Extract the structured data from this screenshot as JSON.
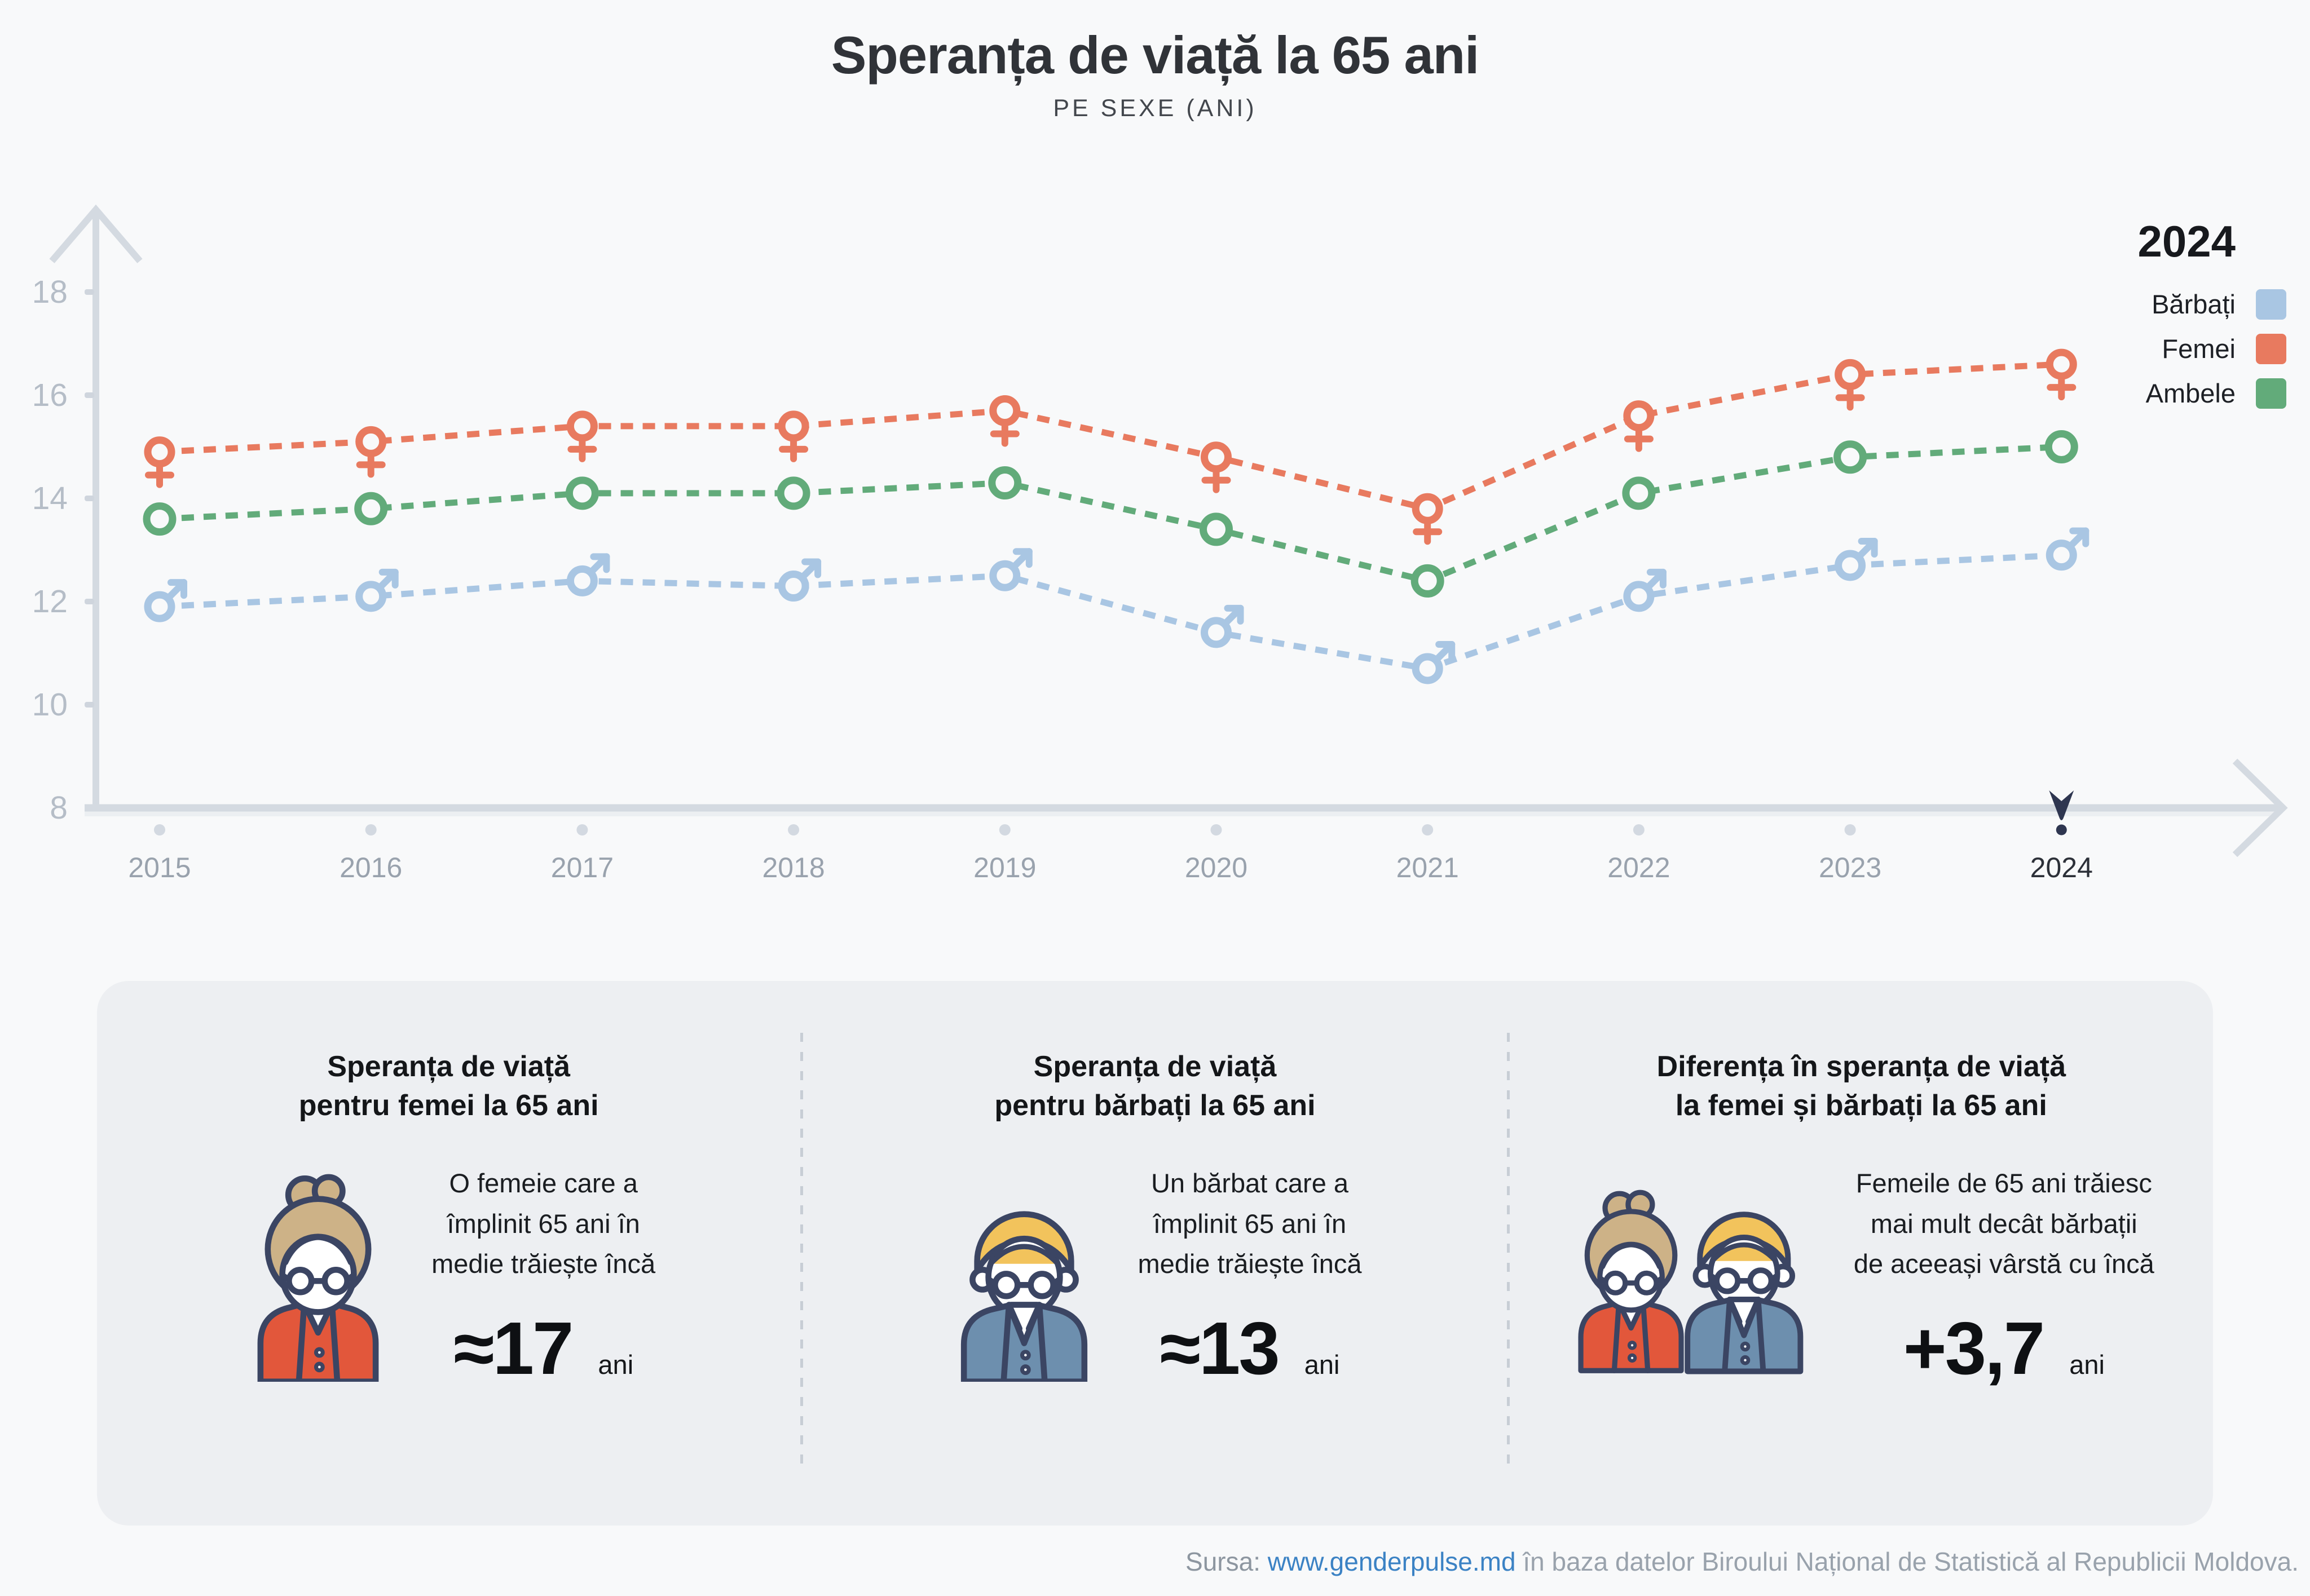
{
  "header": {
    "title": "Speranța de viață la 65 ani",
    "subtitle": "PE SEXE (ANI)"
  },
  "legend": {
    "year": "2024",
    "items": [
      {
        "label": "Bărbați",
        "color": "#a9c6e3"
      },
      {
        "label": "Femei",
        "color": "#e87a5f"
      },
      {
        "label": "Ambele",
        "color": "#62ab7a"
      }
    ]
  },
  "chart_data": {
    "type": "line",
    "title": "Speranța de viață la 65 ani",
    "subtitle": "PE SEXE (ANI)",
    "x": [
      2015,
      2016,
      2017,
      2018,
      2019,
      2020,
      2021,
      2022,
      2023,
      2024
    ],
    "series": [
      {
        "name": "Femei",
        "color": "#e87a5f",
        "marker": "female",
        "values": [
          14.9,
          15.1,
          15.4,
          15.4,
          15.7,
          14.8,
          13.8,
          15.6,
          16.4,
          16.6
        ]
      },
      {
        "name": "Ambele",
        "color": "#62ab7a",
        "marker": "circle",
        "values": [
          13.6,
          13.8,
          14.1,
          14.1,
          14.3,
          13.4,
          12.4,
          14.1,
          14.8,
          15.0
        ]
      },
      {
        "name": "Bărbați",
        "color": "#a9c6e3",
        "marker": "male",
        "values": [
          11.9,
          12.1,
          12.4,
          12.3,
          12.5,
          11.4,
          10.7,
          12.1,
          12.7,
          12.9
        ]
      }
    ],
    "y_ticks": [
      8,
      10,
      12,
      14,
      16,
      18
    ],
    "ylim": [
      8,
      18.6
    ],
    "xlabel": "",
    "ylabel": "",
    "grid": false,
    "line_style": "dashed",
    "legend_position": "top-right",
    "highlight_year": 2024
  },
  "cards": [
    {
      "title_line1": "Speranța de viață",
      "title_line2": "pentru femei la 65 ani",
      "icon": "elderly-woman-icon",
      "body_lines": [
        "O femeie care a",
        "împlinit 65 ani în",
        "medie trăiește încă"
      ],
      "value": "≈17",
      "unit": "ani"
    },
    {
      "title_line1": "Speranța de viață",
      "title_line2": "pentru bărbați la 65 ani",
      "icon": "elderly-man-icon",
      "body_lines": [
        "Un bărbat care a",
        "împlinit 65 ani în",
        "medie trăiește încă"
      ],
      "value": "≈13",
      "unit": "ani"
    },
    {
      "title_line1": "Diferența în speranța de viață",
      "title_line2": "la femei și bărbați la 65 ani",
      "icon": "elderly-couple-icon",
      "body_lines": [
        "Femeile de 65 ani trăiesc",
        "mai mult decât bărbații",
        "de aceeași vârstă cu încă"
      ],
      "value": "+3,7",
      "unit": "ani"
    }
  ],
  "footer": {
    "prefix": "Sursa:",
    "link": "www.genderpulse.md",
    "rest": "în baza datelor Biroului Național de Statistică al Republicii Moldova."
  },
  "colors": {
    "accent_red": "#e87a5f",
    "accent_green": "#62ab7a",
    "accent_blue": "#a9c6e3",
    "link_blue": "#3b82c4",
    "highlight_navy": "#2e3650"
  }
}
